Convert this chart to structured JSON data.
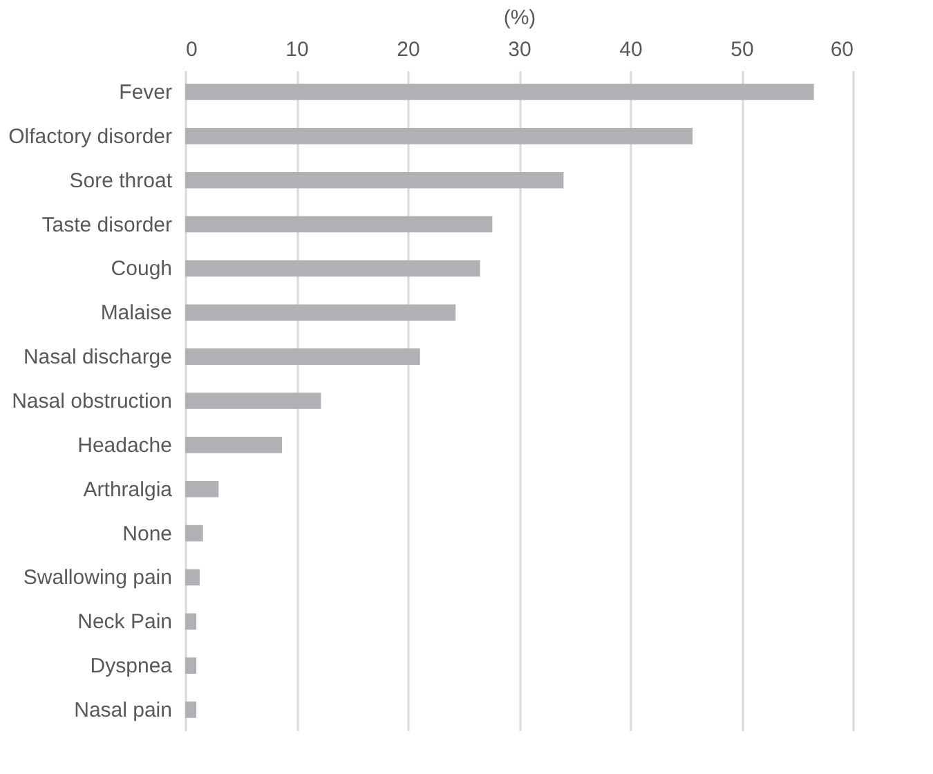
{
  "chart_data": {
    "type": "bar",
    "orientation": "horizontal",
    "xlabel": "(%)",
    "categories": [
      "Fever",
      "Olfactory disorder",
      "Sore throat",
      "Taste disorder",
      "Cough",
      "Malaise",
      "Nasal discharge",
      "Nasal obstruction",
      "Headache",
      "Arthralgia",
      "None",
      "Swallowing pain",
      "Neck Pain",
      "Dyspnea",
      "Nasal pain"
    ],
    "values": [
      56.5,
      45.6,
      34.0,
      27.6,
      26.5,
      24.3,
      21.1,
      12.2,
      8.7,
      3.0,
      1.6,
      1.3,
      1.0,
      1.0,
      1.0
    ],
    "color": "#b0b1b5",
    "xlim": [
      0,
      60
    ],
    "xticks": [
      0,
      10,
      20,
      30,
      40,
      50,
      60
    ],
    "grid": "x"
  }
}
